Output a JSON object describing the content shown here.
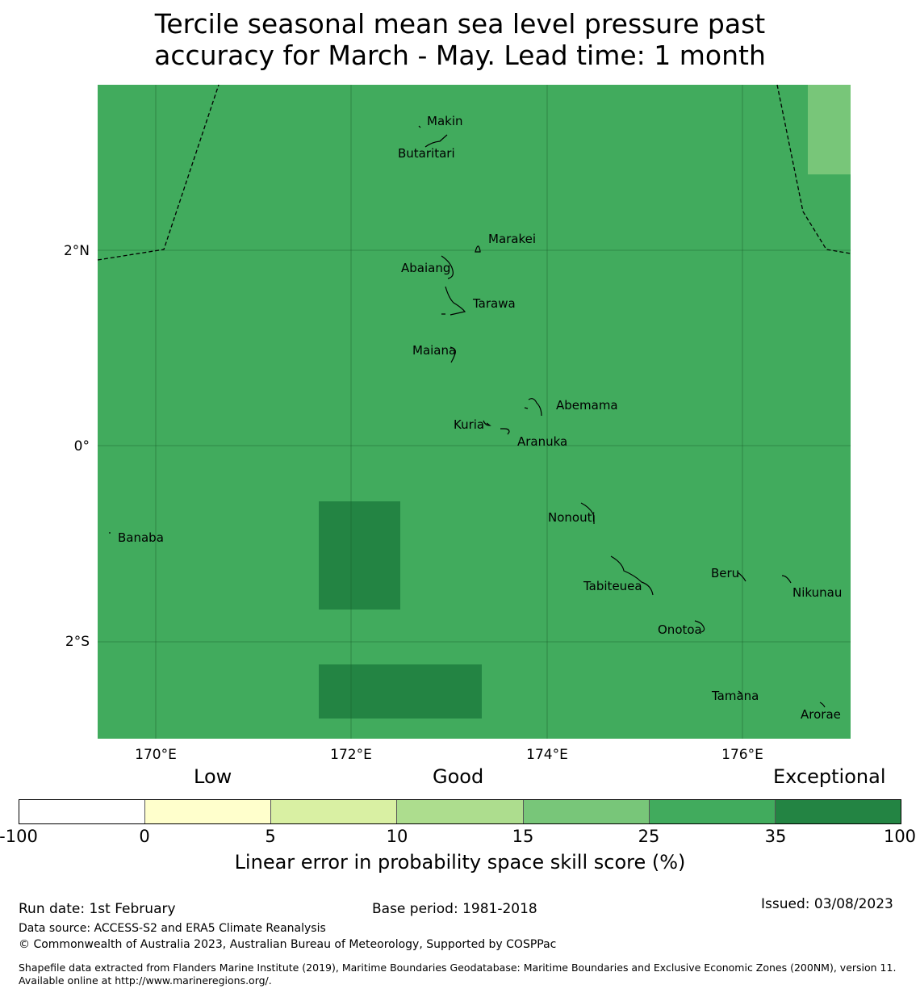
{
  "title_line1": "Tercile seasonal mean sea level pressure past",
  "title_line2": "accuracy for March - May. Lead time: 1 month",
  "map": {
    "lat_labels": [
      "2°N",
      "0°",
      "2°S"
    ],
    "lon_labels": [
      "170°E",
      "172°E",
      "174°E",
      "176°E"
    ],
    "base_color": "#41ab5d",
    "high_color": "#238443",
    "low_color": "#78c679",
    "islands": [
      "Makin",
      "Butaritari",
      "Marakei",
      "Abaiang",
      "Tarawa",
      "Maiana",
      "Abemama",
      "Kuria",
      "Aranuka",
      "Nonouti",
      "Banaba",
      "Beru",
      "Tabiteuea",
      "Nikunau",
      "Onotoa",
      "Tamana",
      "Arorae"
    ]
  },
  "colorbar": {
    "categories": [
      "Low",
      "Good",
      "Exceptional"
    ],
    "colors": [
      "#ffffff",
      "#ffffcc",
      "#d9f0a3",
      "#addd8e",
      "#78c679",
      "#41ab5d",
      "#238443"
    ],
    "ticks": [
      "-100",
      "0",
      "5",
      "10",
      "15",
      "25",
      "35",
      "100"
    ],
    "label": "Linear error in probability space skill score (%)"
  },
  "footer": {
    "run_date": "Run date: 1st February",
    "base_period": "Base period: 1981-2018",
    "issued": "Issued: 03/08/2023",
    "data_source": "Data source: ACCESS-S2 and ERA5 Climate Reanalysis",
    "copyright": "© Commonwealth of Australia 2023, Australian Bureau of Meteorology, Supported by COSPPac",
    "shapefile": "Shapefile data extracted from Flanders Marine Institute (2019), Maritime Boundaries Geodatabase: Maritime Boundaries and Exclusive Economic Zones (200NM), version 11. Available online at http://www.marineregions.org/."
  }
}
